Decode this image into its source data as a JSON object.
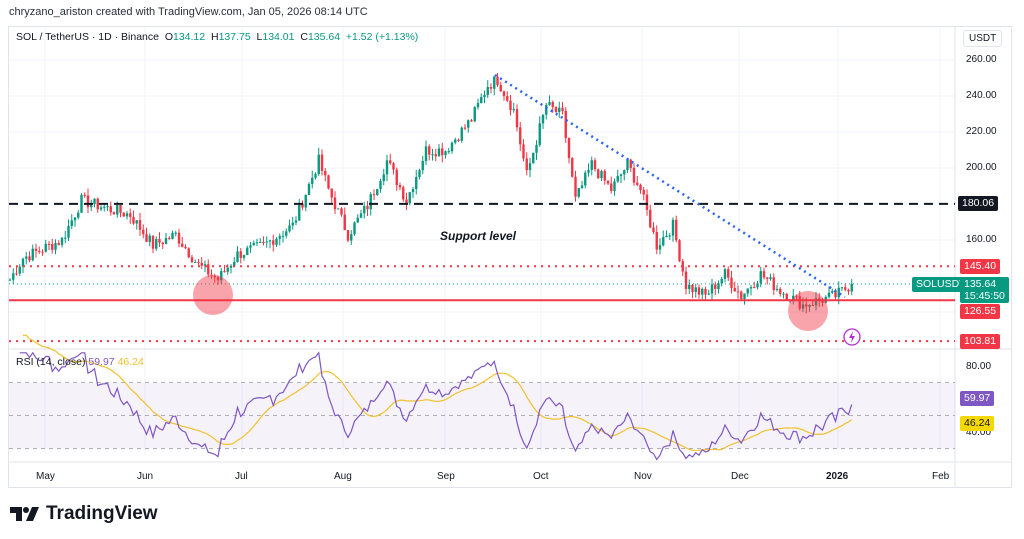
{
  "credit": "chryzano_ariston created with TradingView.com, Jan 05, 2026 08:14 UTC",
  "legend": {
    "symbol": "SOL / TetherUS · 1D · Binance",
    "o_label": "O",
    "o": "134.12",
    "h_label": "H",
    "h": "137.75",
    "l_label": "L",
    "l": "134.01",
    "c_label": "C",
    "c": "135.64",
    "change": "+1.52 (+1.13%)"
  },
  "currency": "USDT",
  "annotation": "Support level",
  "price_axis": [
    "260.00",
    "240.00",
    "220.00",
    "200.00",
    "160.00"
  ],
  "levels": {
    "resistance_dashed": "180.06",
    "upper_dotted": "145.40",
    "support": "126.55",
    "lower_dotted": "103.81"
  },
  "last": {
    "symbol": "SOLUSDT",
    "price": "135.64",
    "countdown": "15:45:50"
  },
  "rsi": {
    "label": "RSI (14, close)",
    "value": "59.97",
    "ma": "46.24",
    "axis": [
      "80.00",
      "40.00"
    ]
  },
  "time_axis": [
    "May",
    "Jun",
    "Jul",
    "Aug",
    "Sep",
    "Oct",
    "Nov",
    "Dec",
    "2026",
    "Feb"
  ],
  "brand": "TradingView",
  "colors": {
    "up": "#089981",
    "down": "#f23645",
    "rsi": "#7e57c2",
    "rsi_ma": "#f2c12e",
    "trend": "#2962ff"
  },
  "chart_data": {
    "type": "candlestick",
    "title": "SOL / TetherUS · 1D · Binance",
    "ylim": [
      95,
      262
    ],
    "waypoints_close": [
      [
        0,
        138
      ],
      [
        4,
        150
      ],
      [
        16,
        160
      ],
      [
        22,
        182
      ],
      [
        31,
        177
      ],
      [
        37,
        174
      ],
      [
        44,
        157
      ],
      [
        51,
        163
      ],
      [
        58,
        146
      ],
      [
        64,
        138
      ],
      [
        70,
        152
      ],
      [
        78,
        157
      ],
      [
        87,
        168
      ],
      [
        95,
        204
      ],
      [
        98,
        188
      ],
      [
        104,
        163
      ],
      [
        110,
        179
      ],
      [
        116,
        204
      ],
      [
        122,
        182
      ],
      [
        128,
        210
      ],
      [
        134,
        210
      ],
      [
        142,
        227
      ],
      [
        147,
        246
      ],
      [
        150,
        249
      ],
      [
        155,
        232
      ],
      [
        159,
        196
      ],
      [
        165,
        235
      ],
      [
        170,
        229
      ],
      [
        174,
        182
      ],
      [
        179,
        202
      ],
      [
        185,
        188
      ],
      [
        190,
        202
      ],
      [
        194,
        188
      ],
      [
        199,
        157
      ],
      [
        204,
        168
      ],
      [
        208,
        135
      ],
      [
        214,
        129
      ],
      [
        220,
        141
      ],
      [
        225,
        129
      ],
      [
        231,
        141
      ],
      [
        237,
        132
      ],
      [
        244,
        124
      ],
      [
        250,
        127
      ],
      [
        254,
        129
      ],
      [
        259,
        135.64
      ]
    ]
  }
}
